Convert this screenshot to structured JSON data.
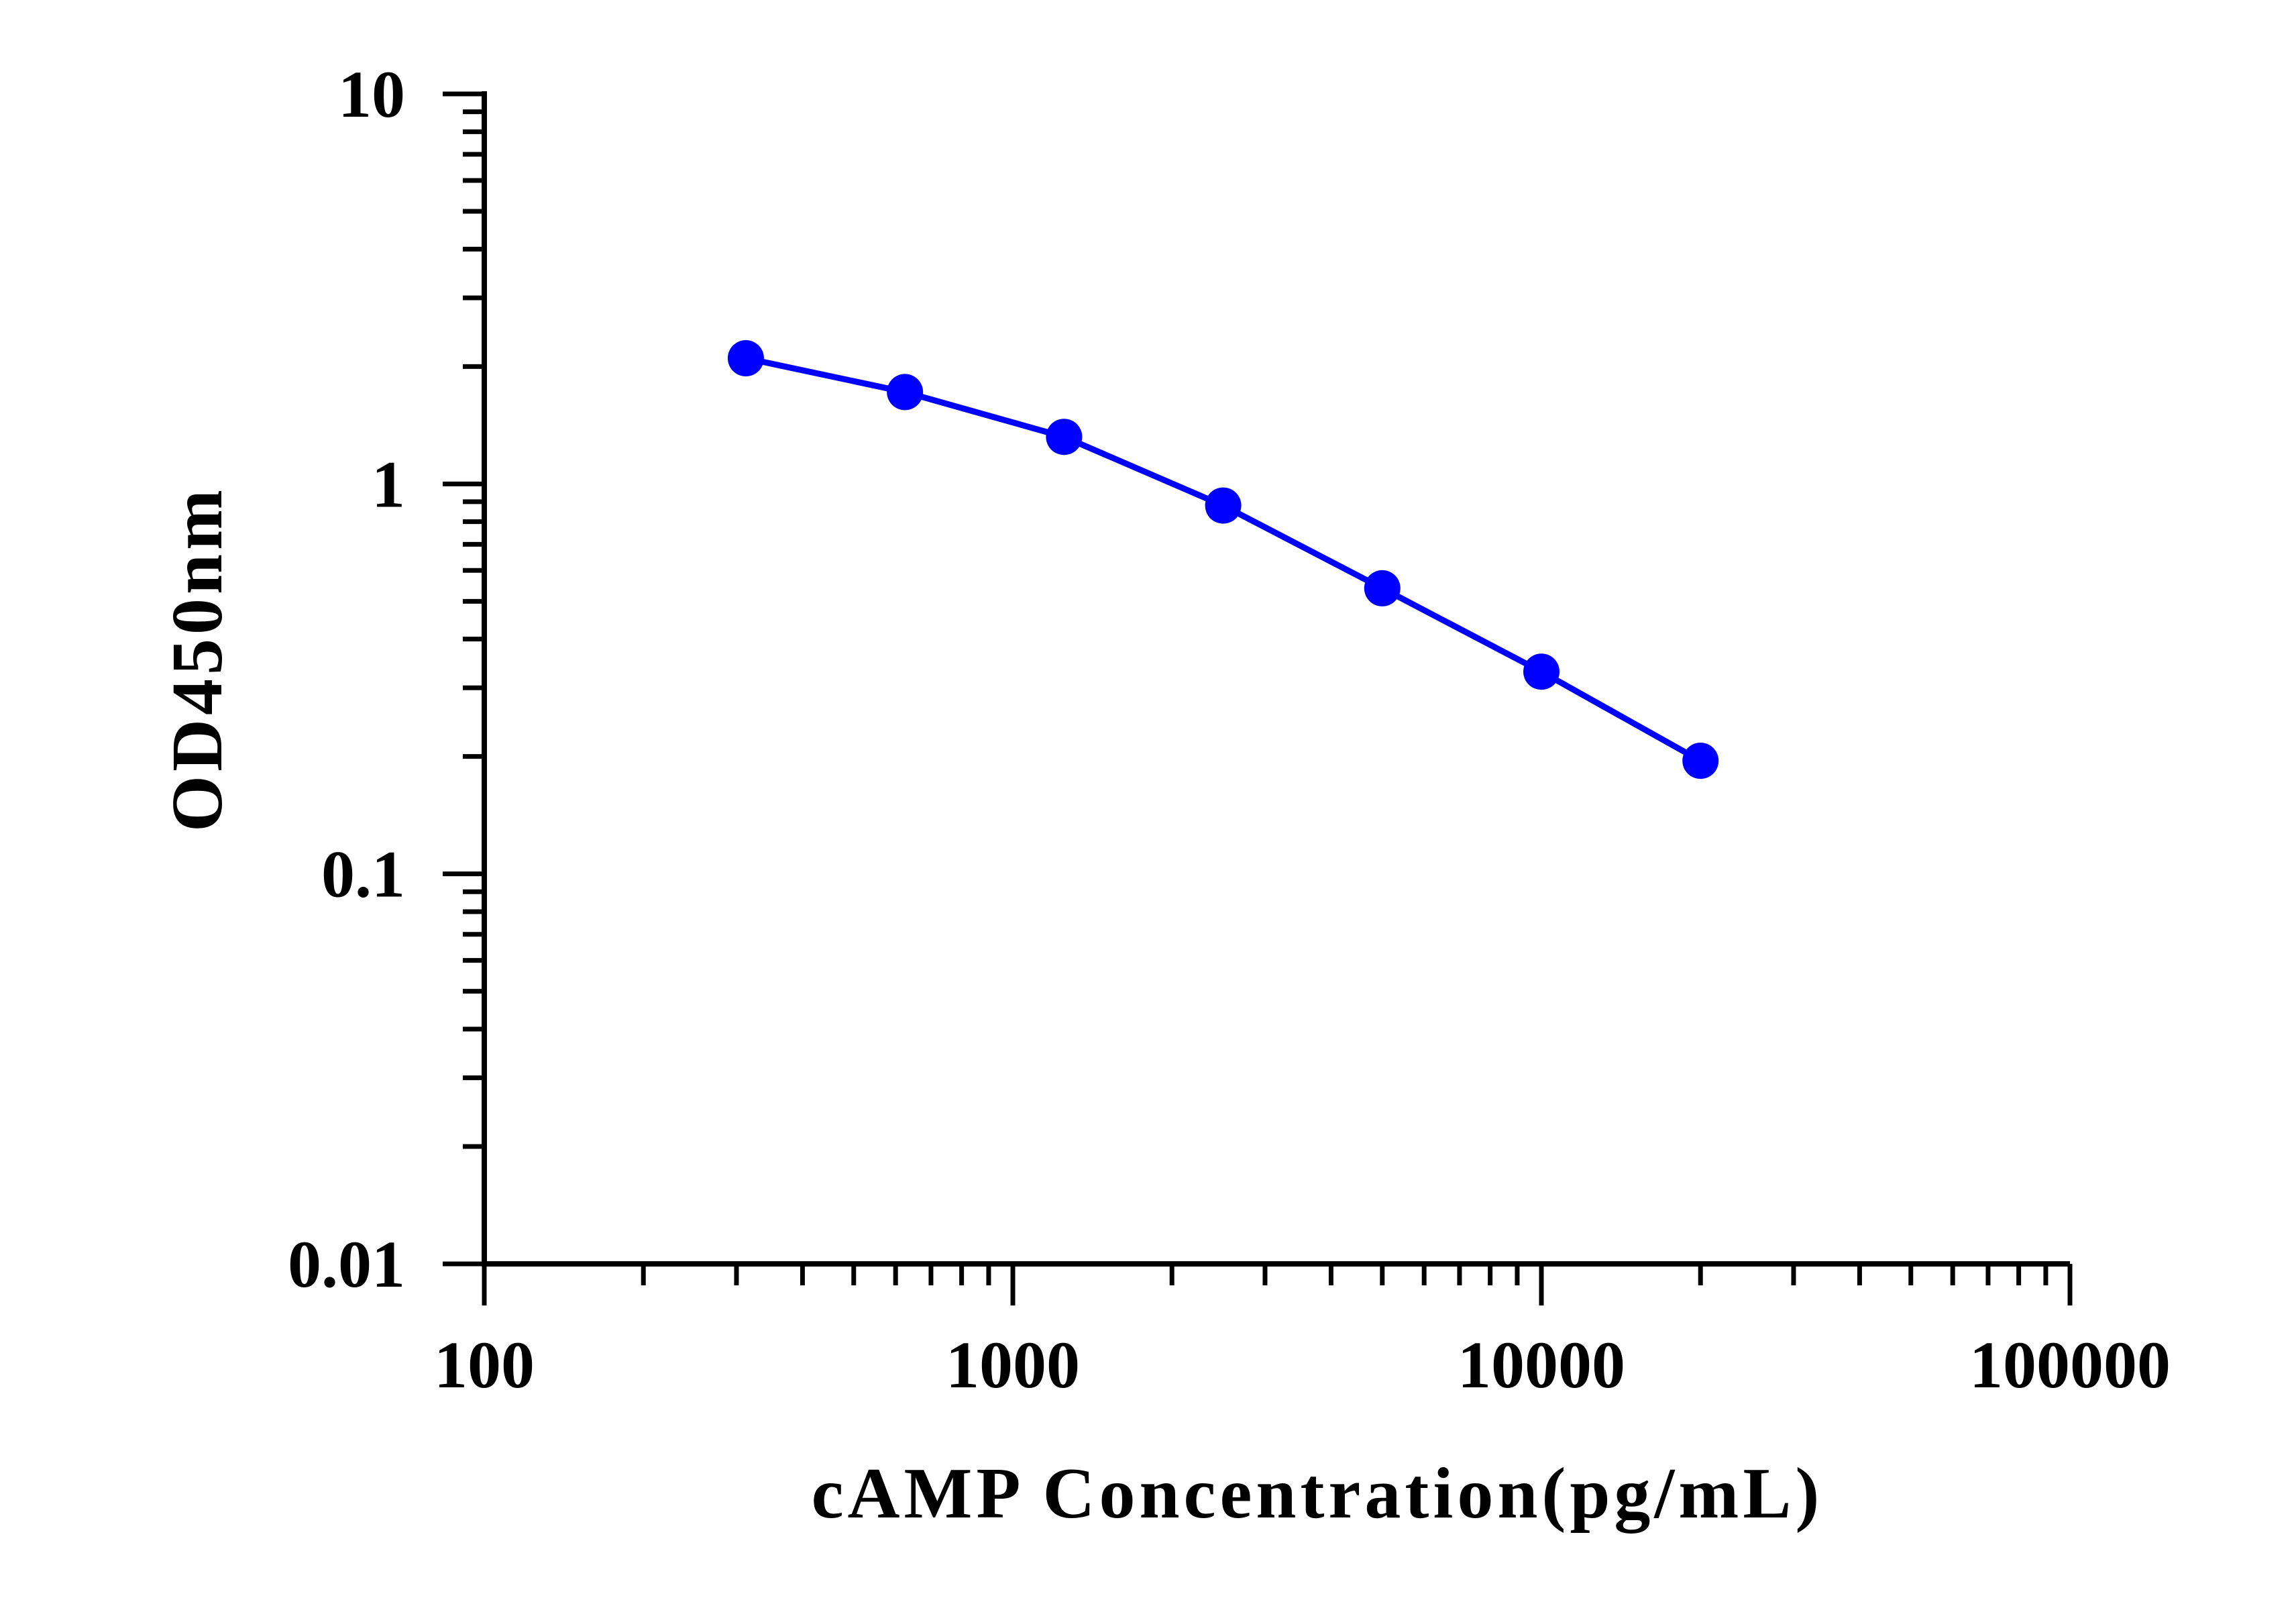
{
  "chart_data": {
    "type": "line",
    "title": "",
    "xlabel": "cAMP Concentration(pg/mL)",
    "ylabel": "OD450nm",
    "xscale": "log",
    "yscale": "log",
    "xlim": [
      100,
      100000
    ],
    "ylim": [
      0.01,
      10
    ],
    "xticks": [
      "100",
      "1000",
      "10000",
      "100000"
    ],
    "yticks": [
      "0.01",
      "0.1",
      "1",
      "10"
    ],
    "grid": false,
    "legend": "none",
    "series": [
      {
        "x": [
          312.5,
          625,
          1250,
          2500,
          5000,
          10000,
          20000
        ],
        "y": [
          2.1,
          1.72,
          1.32,
          0.88,
          0.54,
          0.33,
          0.195
        ]
      }
    ],
    "colors": {
      "series": "#0000ff",
      "axis": "#000000"
    }
  }
}
